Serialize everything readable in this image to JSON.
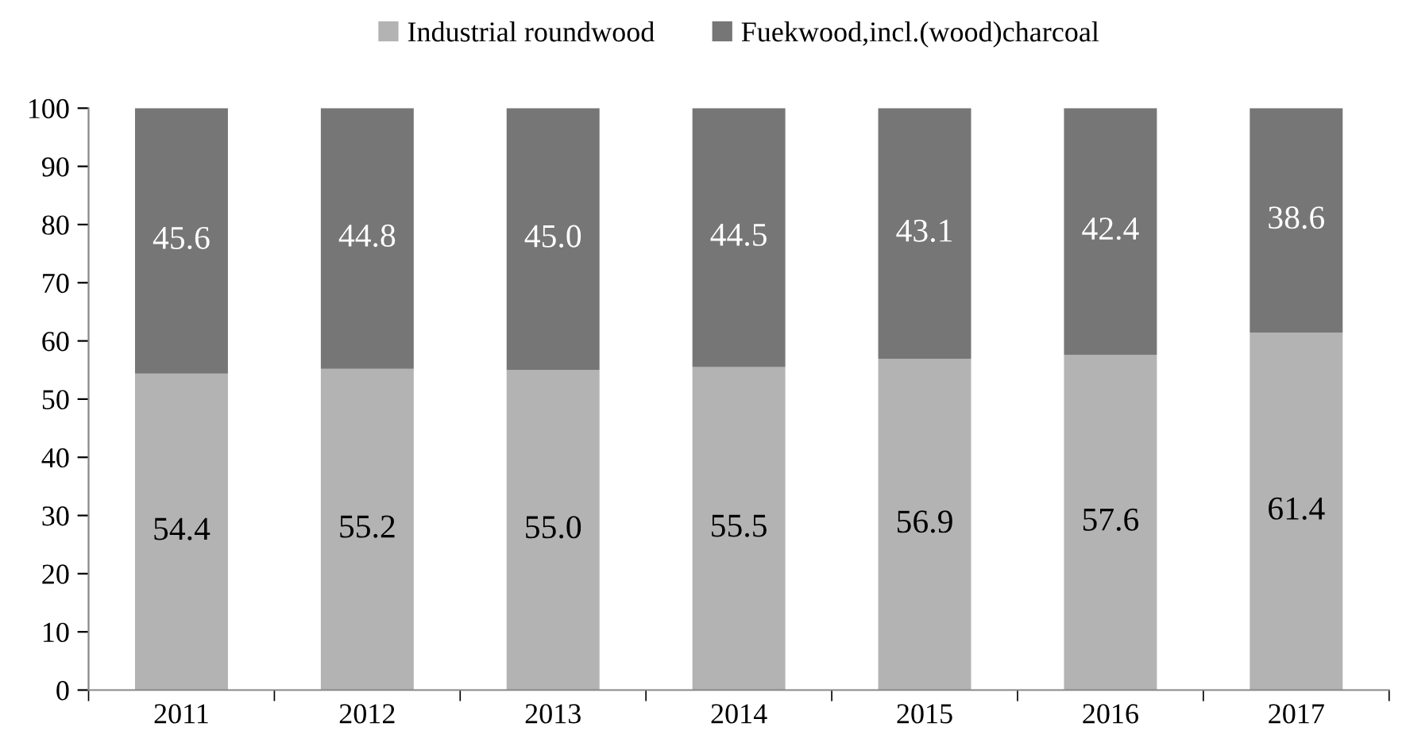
{
  "chart_data": {
    "type": "bar",
    "stacked": true,
    "categories": [
      "2011",
      "2012",
      "2013",
      "2014",
      "2015",
      "2016",
      "2017"
    ],
    "series": [
      {
        "name": "Industrial roundwood",
        "color": "#b3b3b3",
        "values": [
          54.4,
          55.2,
          55.0,
          55.5,
          56.9,
          57.6,
          61.4
        ],
        "value_labels": [
          "54.4",
          "55.2",
          "55.0",
          "55.5",
          "56.9",
          "57.6",
          "61.4"
        ]
      },
      {
        "name": "Fuekwood,incl.(wood)charcoal",
        "color": "#767676",
        "values": [
          45.6,
          44.8,
          45.0,
          44.5,
          43.1,
          42.4,
          38.6
        ],
        "value_labels": [
          "45.6",
          "44.8",
          "45.0",
          "44.5",
          "43.1",
          "42.4",
          "38.6"
        ]
      }
    ],
    "ylim": [
      0,
      100
    ],
    "yticks": [
      0,
      10,
      20,
      30,
      40,
      50,
      60,
      70,
      80,
      90,
      100
    ],
    "grid": false,
    "legend": "top"
  }
}
